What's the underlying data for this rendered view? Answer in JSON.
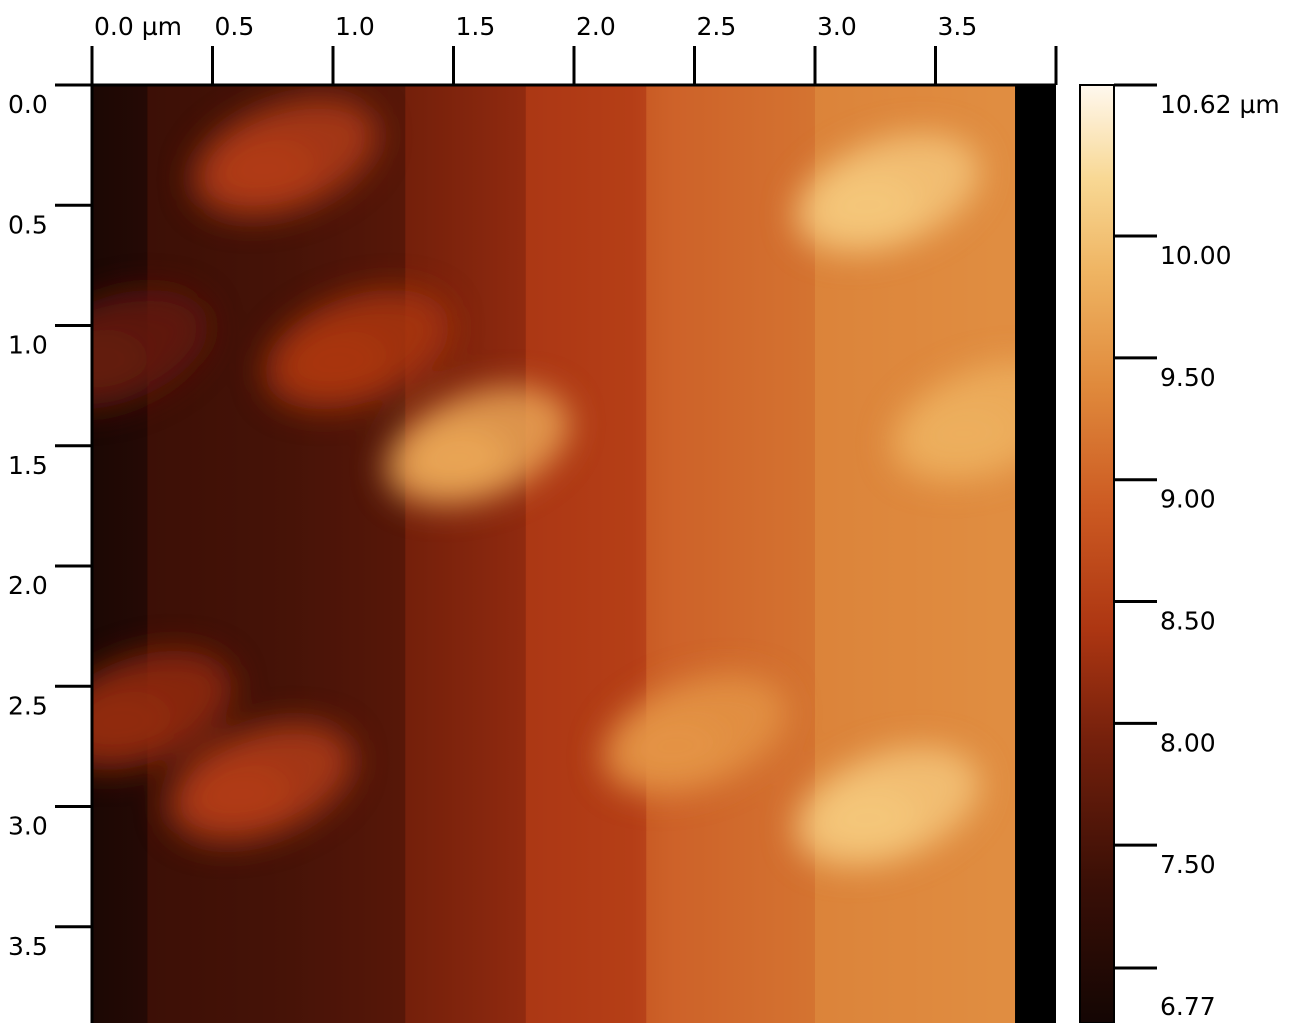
{
  "chart_data": {
    "type": "heatmap",
    "title": "",
    "x_axis": {
      "position": "top",
      "range": [
        0,
        4.0
      ],
      "ticks": [
        0,
        0.5,
        1.0,
        1.5,
        2.0,
        2.5,
        3.0,
        3.5
      ],
      "tick_labels": [
        "0.0 µm",
        "0.5",
        "1.0",
        "1.5",
        "2.0",
        "2.5",
        "3.0",
        "3.5"
      ]
    },
    "y_axis": {
      "position": "left",
      "direction": "downward",
      "range": [
        0,
        3.9
      ],
      "ticks": [
        0,
        0.5,
        1.0,
        1.5,
        2.0,
        2.5,
        3.0,
        3.5
      ],
      "tick_labels": [
        "0.0",
        "0.5",
        "1.0",
        "1.5",
        "2.0",
        "2.5",
        "3.0",
        "3.5"
      ]
    },
    "colorbar": {
      "min": 6.77,
      "max": 10.62,
      "ticks": [
        10.62,
        10.0,
        9.5,
        9.0,
        8.5,
        8.0,
        7.5,
        6.77
      ],
      "tick_labels": [
        "10.62 µm",
        "10.00",
        "9.50",
        "9.00",
        "8.50",
        "8.00",
        "7.50",
        "6.77"
      ],
      "colormap": [
        "#140604",
        "#3a0f06",
        "#74200c",
        "#ad3612",
        "#cc5a22",
        "#e08a3c",
        "#efb462",
        "#f8d894",
        "#fff8ee"
      ]
    },
    "height_regions": [
      {
        "x_range": [
          0,
          0.23
        ],
        "value": 6.95
      },
      {
        "x_range": [
          0.23,
          1.3
        ],
        "value": 7.4
      },
      {
        "x_range": [
          1.3,
          1.8
        ],
        "value": 7.85
      },
      {
        "x_range": [
          1.8,
          2.3
        ],
        "value": 8.3
      },
      {
        "x_range": [
          2.3,
          3.0
        ],
        "value": 8.85
      },
      {
        "x_range": [
          3.0,
          3.83
        ],
        "value": 9.15
      }
    ],
    "features": [
      {
        "x": 0.8,
        "y": 0.3,
        "value": 8.3
      },
      {
        "x": 1.6,
        "y": 1.5,
        "value": 9.5
      },
      {
        "x": 1.1,
        "y": 1.1,
        "value": 8.2
      },
      {
        "x": 3.3,
        "y": 0.45,
        "value": 9.9
      },
      {
        "x": 3.7,
        "y": 1.4,
        "value": 9.6
      },
      {
        "x": 3.3,
        "y": 3.0,
        "value": 9.9
      },
      {
        "x": 2.5,
        "y": 2.7,
        "value": 9.3
      },
      {
        "x": 0.7,
        "y": 2.9,
        "value": 8.3
      },
      {
        "x": 0.2,
        "y": 2.6,
        "value": 8.0
      },
      {
        "x": 0.1,
        "y": 1.1,
        "value": 7.6
      }
    ],
    "no_data_x_range": [
      3.83,
      4.0
    ]
  }
}
